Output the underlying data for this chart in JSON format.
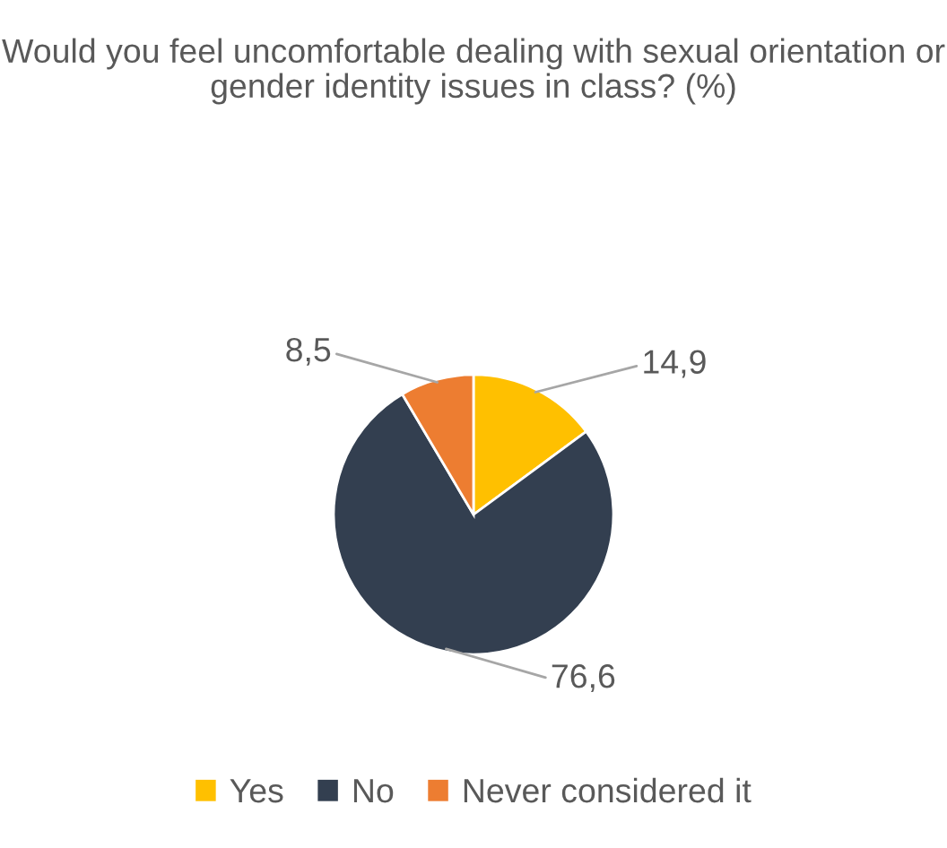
{
  "chart_data": {
    "type": "pie",
    "title": "Would you feel uncomfortable dealing with sexual orientation or gender identity issues in class? (%)",
    "categories": [
      "Yes",
      "No",
      "Never considered it"
    ],
    "values": [
      14.9,
      76.6,
      8.5
    ],
    "colors": [
      "#ffc000",
      "#333f50",
      "#ed7d31"
    ],
    "value_labels": [
      "14,9",
      "76,6",
      "8,5"
    ],
    "legend": "bottom"
  }
}
